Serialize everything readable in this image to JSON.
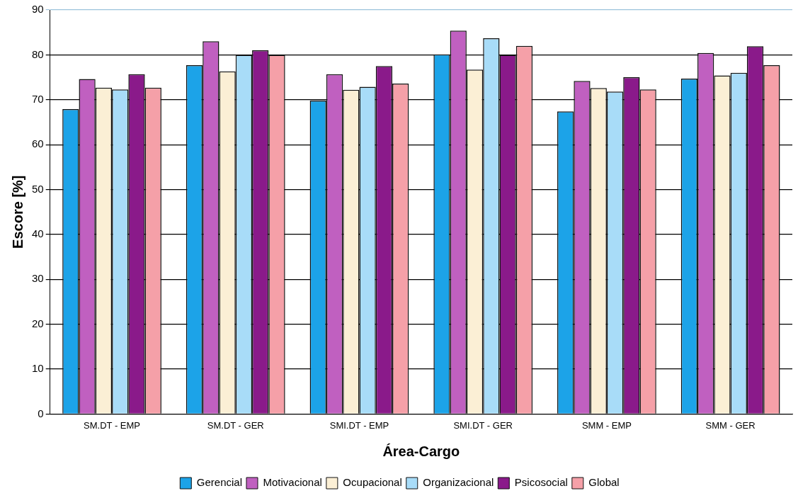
{
  "chart_data": {
    "type": "bar",
    "xlabel": "Área-Cargo",
    "ylabel": "Escore [%]",
    "categories": [
      "SM.DT - EMP",
      "SM.DT - GER",
      "SMI.DT - EMP",
      "SMI.DT - GER",
      "SMM - EMP",
      "SMM - GER"
    ],
    "series": [
      {
        "name": "Gerencial",
        "color": "#1ca3e8",
        "values": [
          67.9,
          77.7,
          69.8,
          80.1,
          67.4,
          74.7
        ]
      },
      {
        "name": "Motivacional",
        "color": "#c060c0",
        "values": [
          74.6,
          83.0,
          75.7,
          85.4,
          74.2,
          80.4
        ]
      },
      {
        "name": "Ocupacional",
        "color": "#fbefd5",
        "values": [
          72.7,
          76.3,
          72.2,
          76.7,
          72.6,
          75.4
        ]
      },
      {
        "name": "Organizacional",
        "color": "#a8dcf8",
        "values": [
          72.3,
          80.0,
          72.9,
          83.7,
          71.8,
          76.0
        ]
      },
      {
        "name": "Psicosocial",
        "color": "#8a1a8a",
        "values": [
          75.7,
          81.0,
          77.5,
          80.0,
          75.0,
          81.9
        ]
      },
      {
        "name": "Global",
        "color": "#f5a0a8",
        "values": [
          72.7,
          80.0,
          73.6,
          82.0,
          72.3,
          77.7
        ]
      }
    ],
    "ylim": [
      0,
      90
    ],
    "yticks": [
      0,
      10,
      20,
      30,
      40,
      50,
      60,
      70,
      80,
      90
    ],
    "grid": "y",
    "legend": "bottom"
  }
}
